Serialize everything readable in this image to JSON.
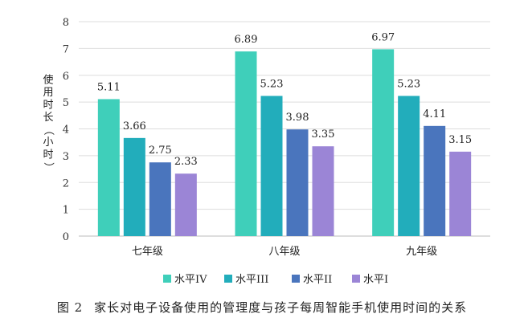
{
  "chart_data": {
    "type": "bar",
    "title": "",
    "xlabel": "",
    "ylabel": "使用时长（小时）",
    "ylim": [
      0,
      8
    ],
    "yticks": [
      0,
      1,
      2,
      3,
      4,
      5,
      6,
      7,
      8
    ],
    "grid": true,
    "legend_position": "bottom",
    "categories": [
      "七年级",
      "八年级",
      "九年级"
    ],
    "series": [
      {
        "name": "水平IV",
        "color": "#3FCFBA",
        "values": [
          5.11,
          6.89,
          6.97
        ],
        "labels": [
          "5.11",
          "6.89",
          "6.97"
        ]
      },
      {
        "name": "水平III",
        "color": "#22ADBB",
        "values": [
          3.66,
          5.23,
          5.23
        ],
        "labels": [
          "3.66",
          "5.23",
          "5.23"
        ]
      },
      {
        "name": "水平II",
        "color": "#4A75BD",
        "values": [
          2.75,
          3.98,
          4.11
        ],
        "labels": [
          "2.75",
          "3.98",
          "4.11"
        ]
      },
      {
        "name": "水平I",
        "color": "#9B85D6",
        "values": [
          2.33,
          3.35,
          3.15
        ],
        "labels": [
          "2.33",
          "3.35",
          "3.15"
        ]
      }
    ]
  },
  "caption": {
    "number": "图 2",
    "text": "家长对电子设备使用的管理度与孩子每周智能手机使用时间的关系"
  }
}
